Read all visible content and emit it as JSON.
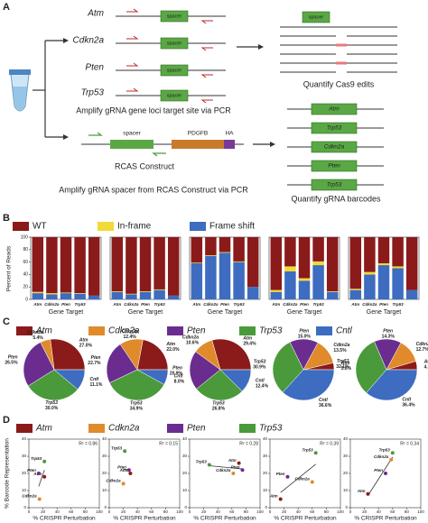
{
  "panels": [
    "A",
    "B",
    "C",
    "D"
  ],
  "diagram": {
    "genes": [
      "Atm",
      "Cdkn2a",
      "Pten",
      "Trp53"
    ],
    "spacer": "spacer",
    "step1": "Amplify gRNA gene loci target site via PCR",
    "result1": "Quantify Cas9 edits",
    "construct": {
      "spacer": "spacer",
      "pdgfb": "PDGFB",
      "ha": "HA",
      "name": "RCAS Construct"
    },
    "step2": "Amplify gRNA spacer from RCAS Construct via PCR",
    "barcodes": [
      "Atm",
      "Trp53",
      "Cdkn2a",
      "Pten",
      "Trp53"
    ],
    "result2": "Quantify gRNA barcodes"
  },
  "panel_b": {
    "legend": [
      {
        "name": "WT",
        "color": "#8b1a1a"
      },
      {
        "name": "In-frame",
        "color": "#f2d936"
      },
      {
        "name": "Frame shift",
        "color": "#3d6cc0"
      }
    ],
    "ylabel": "Percent of Reads"
  },
  "panel_c": {
    "legend": [
      {
        "name": "Atm",
        "color": "#8b1a1a"
      },
      {
        "name": "Cdkn2a",
        "color": "#e08a2c"
      },
      {
        "name": "Pten",
        "color": "#6a2d8f"
      },
      {
        "name": "Trp53",
        "color": "#4a9a3c"
      },
      {
        "name": "Cntl",
        "color": "#3d6cc0"
      }
    ]
  },
  "panel_d": {
    "legend": [
      {
        "name": "Atm",
        "color": "#8b1a1a"
      },
      {
        "name": "Cdkn2a",
        "color": "#e08a2c"
      },
      {
        "name": "Pten",
        "color": "#6a2d8f"
      },
      {
        "name": "Trp53",
        "color": "#4a9a3c"
      }
    ],
    "ylabel": "% Barcode Representation"
  },
  "chart_data": [
    {
      "type": "bar",
      "stacked": true,
      "xlabel": "Gene Target",
      "categories": [
        "Atm",
        "Cdkn2a",
        "Pten",
        "Trp53",
        null
      ],
      "series": [
        {
          "values": [
            88,
            90,
            89,
            90,
            94
          ]
        },
        {
          "values": [
            2,
            2,
            1,
            1,
            0
          ]
        },
        {
          "values": [
            10,
            8,
            10,
            9,
            6
          ]
        }
      ],
      "ylim": [
        0,
        100
      ],
      "yticks": [
        0,
        20,
        40,
        60,
        80,
        100
      ]
    },
    {
      "type": "bar",
      "stacked": true,
      "xlabel": "Gene Target",
      "categories": [
        "Atm",
        "Cdkn2a",
        "Pten",
        "Trp53",
        null
      ],
      "series": [
        {
          "values": [
            87,
            91,
            87,
            84,
            94
          ]
        },
        {
          "values": [
            1,
            1,
            1,
            1,
            0
          ]
        },
        {
          "values": [
            12,
            8,
            12,
            15,
            6
          ]
        }
      ],
      "ylim": [
        0,
        100
      ]
    },
    {
      "type": "bar",
      "stacked": true,
      "xlabel": "Gene Target",
      "categories": [
        "Atm",
        "Cdkn2a",
        "Pten",
        "Trp53",
        null
      ],
      "series": [
        {
          "values": [
            41,
            29,
            24,
            39,
            80
          ]
        },
        {
          "values": [
            1,
            1,
            1,
            1,
            0
          ]
        },
        {
          "values": [
            58,
            70,
            75,
            60,
            20
          ]
        }
      ],
      "ylim": [
        0,
        100
      ]
    },
    {
      "type": "bar",
      "stacked": true,
      "xlabel": "Gene Target",
      "categories": [
        "Atm",
        "Cdkn2a",
        "Pten",
        "Trp53",
        null
      ],
      "series": [
        {
          "values": [
            85,
            47,
            66,
            39,
            87
          ]
        },
        {
          "values": [
            3,
            8,
            4,
            6,
            1
          ]
        },
        {
          "values": [
            12,
            45,
            30,
            55,
            12
          ]
        }
      ],
      "ylim": [
        0,
        100
      ]
    },
    {
      "type": "bar",
      "stacked": true,
      "xlabel": "Gene Target",
      "categories": [
        "Atm",
        "Cdkn2a",
        "Pten",
        "Trp53",
        null
      ],
      "series": [
        {
          "values": [
            83,
            56,
            42,
            47,
            85
          ]
        },
        {
          "values": [
            2,
            4,
            3,
            3,
            0
          ]
        },
        {
          "values": [
            15,
            40,
            55,
            50,
            15
          ]
        }
      ],
      "ylim": [
        0,
        100
      ]
    },
    {
      "type": "pie",
      "categories": [
        "Atm",
        "Cdkn2a",
        "Pten",
        "Trp53",
        "Cntl"
      ],
      "values": [
        27.0,
        5.4,
        26.5,
        30.0,
        11.1
      ],
      "value_labels": [
        "27.0%",
        "5.4%",
        "26.5%",
        "30.0%",
        "11.1%"
      ]
    },
    {
      "type": "pie",
      "categories": [
        "Atm",
        "Cdkn2a",
        "Pten",
        "Trp53",
        "Cntl"
      ],
      "values": [
        22.0,
        12.4,
        22.7,
        34.9,
        8.0
      ],
      "value_labels": [
        "22.0%",
        "12.4%",
        "22.7%",
        "34.9%",
        "8.0%"
      ]
    },
    {
      "type": "pie",
      "categories": [
        "Atm",
        "Cdkn2a",
        "Pten",
        "Trp53",
        "Cntl"
      ],
      "values": [
        29.4,
        10.6,
        20.9,
        26.8,
        12.4
      ],
      "value_labels": [
        "29.4%",
        "10.6%",
        "20.9%",
        "26.8%",
        "12.4%"
      ]
    },
    {
      "type": "pie",
      "categories": [
        "Atm",
        "Cdkn2a",
        "Pten",
        "Trp53",
        "Cntl"
      ],
      "values": [
        3.6,
        13.5,
        15.0,
        30.9,
        36.6
      ],
      "value_labels": [
        "3.6%",
        "13.5%",
        "15.0%",
        "30.9%",
        "36.6%"
      ]
    },
    {
      "type": "pie",
      "categories": [
        "Atm",
        "Cdkn2a",
        "Pten",
        "Trp53",
        "Cntl"
      ],
      "values": [
        4.5,
        12.7,
        14.3,
        32.1,
        36.4
      ],
      "value_labels": [
        "4.5%",
        "12.7%",
        "14.3%",
        "32.1%",
        "36.4%"
      ]
    },
    {
      "type": "scatter",
      "annotation": "R² = 0.86",
      "xlabel": "% CRISPR Perturbation",
      "labels": [
        "Atm",
        "Cdkn2a",
        "Pten",
        "Trp53"
      ],
      "x": [
        22,
        15,
        14,
        22
      ],
      "values": [
        18,
        5,
        20,
        27
      ],
      "xlim": [
        0,
        100
      ],
      "ylim": [
        0,
        40
      ],
      "xticks": [
        0,
        20,
        40,
        60,
        80,
        100
      ],
      "yticks": [
        0,
        10,
        20,
        30,
        40
      ]
    },
    {
      "type": "scatter",
      "annotation": "R² = 0.15",
      "xlabel": "% CRISPR Perturbation",
      "labels": [
        "Atm",
        "Cdkn2a",
        "Pten",
        "Trp53"
      ],
      "x": [
        30,
        20,
        28,
        22
      ],
      "values": [
        20,
        14,
        22,
        33
      ],
      "xlim": [
        0,
        100
      ],
      "ylim": [
        0,
        40
      ],
      "xticks": [
        0,
        20,
        40,
        60,
        80,
        100
      ],
      "yticks": [
        0,
        10,
        20,
        30,
        40
      ]
    },
    {
      "type": "scatter",
      "annotation": "R² = 0.28",
      "xlabel": "% CRISPR Perturbation",
      "labels": [
        "Atm",
        "Cdkn2a",
        "Pten",
        "Trp53"
      ],
      "x": [
        70,
        62,
        75,
        28
      ],
      "values": [
        26,
        20,
        22,
        25
      ],
      "xlim": [
        0,
        100
      ],
      "ylim": [
        0,
        40
      ],
      "xticks": [
        0,
        20,
        40,
        60,
        80,
        100
      ],
      "yticks": [
        0,
        10,
        20,
        30,
        40
      ]
    },
    {
      "type": "scatter",
      "annotation": "R² = 0.39",
      "xlabel": "% CRISPR Perturbation",
      "labels": [
        "Atm",
        "Cdkn2a",
        "Pten",
        "Trp53"
      ],
      "x": [
        15,
        60,
        25,
        65
      ],
      "values": [
        5,
        15,
        18,
        32
      ],
      "xlim": [
        0,
        100
      ],
      "ylim": [
        0,
        40
      ],
      "xticks": [
        0,
        20,
        40,
        60,
        80,
        100
      ],
      "yticks": [
        0,
        10,
        20,
        30,
        40
      ]
    },
    {
      "type": "scatter",
      "annotation": "R² = 0.34",
      "xlabel": "% CRISPR Perturbation",
      "labels": [
        "Atm",
        "Cdkn2a",
        "Pten",
        "Trp53"
      ],
      "x": [
        25,
        58,
        50,
        60
      ],
      "values": [
        8,
        28,
        20,
        32
      ],
      "xlim": [
        0,
        100
      ],
      "ylim": [
        0,
        40
      ],
      "xticks": [
        0,
        20,
        40,
        60,
        80,
        100
      ],
      "yticks": [
        0,
        10,
        20,
        30,
        40
      ]
    }
  ]
}
